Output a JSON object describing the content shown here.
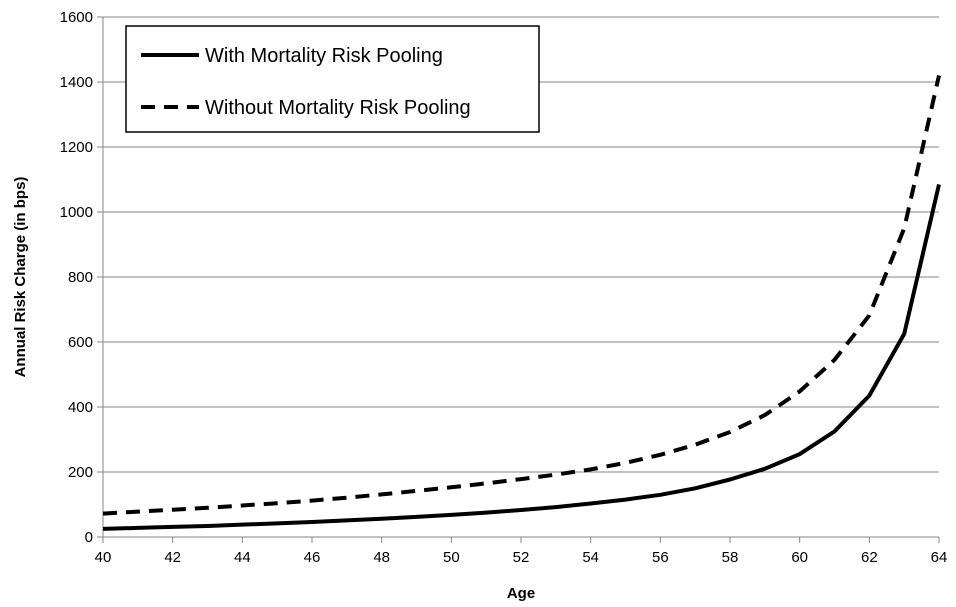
{
  "chart_data": {
    "type": "line",
    "xlabel": "Age",
    "ylabel": "Annual Risk Charge (in bps)",
    "xlim": [
      40,
      64
    ],
    "ylim": [
      0,
      1600
    ],
    "x_ticks": [
      "40",
      "42",
      "44",
      "46",
      "48",
      "50",
      "52",
      "54",
      "56",
      "58",
      "60",
      "62",
      "64"
    ],
    "y_ticks": [
      "0",
      "200",
      "400",
      "600",
      "800",
      "1000",
      "1200",
      "1400",
      "1600"
    ],
    "grid": "horizontal",
    "legend_position": "top-left",
    "x": [
      40,
      41,
      42,
      43,
      44,
      45,
      46,
      47,
      48,
      49,
      50,
      51,
      52,
      53,
      54,
      55,
      56,
      57,
      58,
      59,
      60,
      61,
      62,
      63,
      64
    ],
    "series": [
      {
        "name": "With Mortality Risk Pooling",
        "style": "solid",
        "color": "#000000",
        "values": [
          25,
          28,
          31,
          34,
          38,
          42,
          46,
          51,
          56,
          62,
          68,
          75,
          83,
          92,
          103,
          115,
          130,
          150,
          177,
          210,
          255,
          325,
          435,
          625,
          1085
        ]
      },
      {
        "name": "Without Mortality Risk Pooling",
        "style": "dashed",
        "color": "#000000",
        "values": [
          72,
          78,
          84,
          90,
          97,
          104,
          112,
          121,
          131,
          142,
          153,
          165,
          178,
          192,
          208,
          228,
          253,
          284,
          323,
          375,
          448,
          545,
          682,
          950,
          1420
        ]
      }
    ]
  }
}
